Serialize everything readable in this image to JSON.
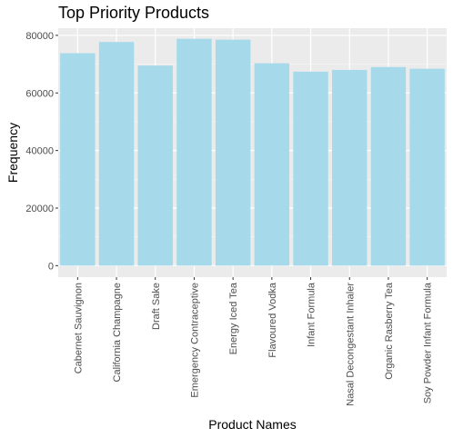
{
  "chart_data": {
    "type": "bar",
    "title": "Top Priority Products",
    "xlabel": "Product Names",
    "ylabel": "Frequency",
    "categories": [
      "Cabernet Sauvignon",
      "California Champagne",
      "Draft Sake",
      "Emergency Contraceptive",
      "Energy Iced Tea",
      "Flavoured Vodka",
      "Infant Formula",
      "Nasal Decongestant Inhaler",
      "Organic Rasberry Tea",
      "Soy Powder Infant Formula"
    ],
    "values": [
      73800,
      77700,
      69500,
      78800,
      78500,
      70300,
      67400,
      68000,
      69000,
      68400
    ],
    "ylim": [
      -4000,
      82500
    ],
    "yticks": [
      0,
      20000,
      40000,
      60000,
      80000
    ],
    "ytick_labels": [
      "0",
      "20000",
      "40000",
      "60000",
      "80000"
    ],
    "grid": true,
    "colors": {
      "bar": "#a6d9ea",
      "panel": "#ebebeb",
      "grid_major": "#ffffff",
      "grid_minor": "#f5f5f5",
      "tick_text": "#4d4d4d",
      "tick_mark": "#333333"
    }
  }
}
